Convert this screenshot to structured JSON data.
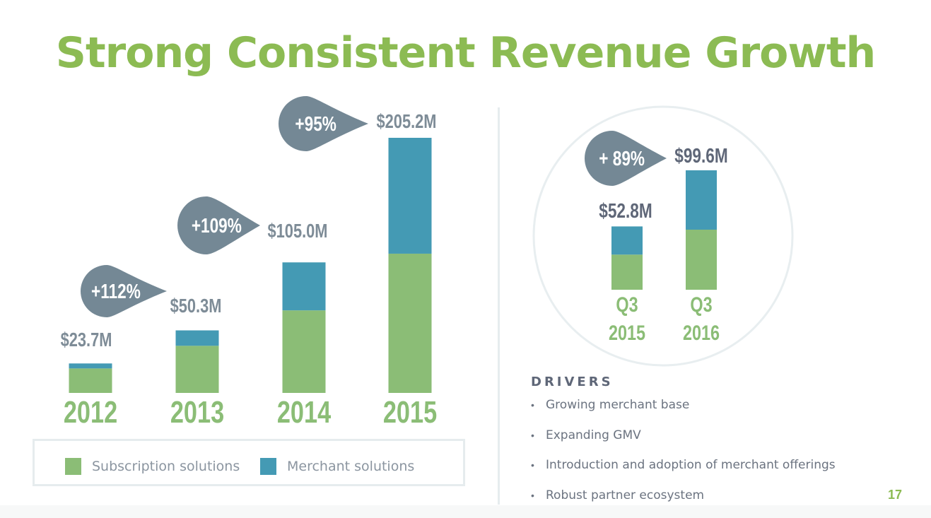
{
  "title": "Strong Consistent Revenue Growth",
  "colors": {
    "subscription": "#8bbd76",
    "merchant": "#449ab4",
    "title_green": "#8cbb53",
    "callout_gray": "#748895",
    "label_gray": "#7e8c97",
    "dark_label": "#5f6778"
  },
  "chart_data": [
    {
      "type": "bar",
      "stacked": true,
      "title": "Annual Revenue",
      "categories": [
        "2012",
        "2013",
        "2014",
        "2015"
      ],
      "series": [
        {
          "name": "Subscription solutions",
          "values": [
            19.7,
            37.9,
            66.4,
            112.0
          ]
        },
        {
          "name": "Merchant solutions",
          "values": [
            4.0,
            12.4,
            38.6,
            93.2
          ]
        }
      ],
      "totals": [
        23.7,
        50.3,
        105.0,
        205.2
      ],
      "total_labels": [
        "$23.7M",
        "$50.3M",
        "$105.0M",
        "$205.2M"
      ],
      "growth_callouts": [
        {
          "from": "2012",
          "to": "2013",
          "label": "+112%"
        },
        {
          "from": "2013",
          "to": "2014",
          "label": "+109%"
        },
        {
          "from": "2014",
          "to": "2015",
          "label": "+95%"
        }
      ],
      "xlabel": "",
      "ylabel": "",
      "ylim": [
        0,
        210
      ],
      "grid": false,
      "legend": {
        "placement": "bottom",
        "entries": [
          "Subscription solutions",
          "Merchant solutions"
        ]
      }
    },
    {
      "type": "bar",
      "stacked": true,
      "title": "Quarterly Revenue",
      "categories": [
        "Q3 2015",
        "Q3 2016"
      ],
      "category_lines": [
        [
          "Q3",
          "2015"
        ],
        [
          "Q3",
          "2016"
        ]
      ],
      "series": [
        {
          "name": "Subscription solutions",
          "values": [
            29.3,
            50.1
          ]
        },
        {
          "name": "Merchant solutions",
          "values": [
            23.5,
            49.5
          ]
        }
      ],
      "totals": [
        52.8,
        99.6
      ],
      "total_labels": [
        "$52.8M",
        "$99.6M"
      ],
      "growth_callouts": [
        {
          "from": "Q3 2015",
          "to": "Q3 2016",
          "label": "+ 89%"
        }
      ],
      "xlabel": "",
      "ylabel": "",
      "ylim": [
        0,
        210
      ],
      "grid": false
    }
  ],
  "drivers": {
    "heading": "DRIVERS",
    "bullet": "•",
    "items": [
      "Growing merchant base",
      "Expanding GMV",
      "Introduction and adoption of merchant offerings",
      "Robust partner ecosystem"
    ]
  },
  "page_number": "17"
}
